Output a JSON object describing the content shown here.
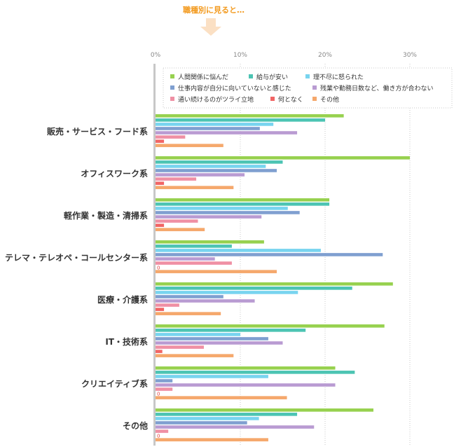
{
  "banner": "職種別に見ると…",
  "chart_data": {
    "type": "bar",
    "orientation": "horizontal",
    "xlim": [
      0,
      35
    ],
    "xticks": [
      0,
      10,
      20,
      30
    ],
    "tick_suffix": "%",
    "grid": true,
    "legend_position": "top-right",
    "categories": [
      "販売・サービス・フード系",
      "オフィスワーク系",
      "軽作業・製造・清掃系",
      "テレマ・テレオペ・コールセンター系",
      "医療・介護系",
      "IT・技術系",
      "クリエイティブ系",
      "その他"
    ],
    "series": [
      {
        "name": "人間関係に悩んだ",
        "color": "#97d14f",
        "values": [
          22.2,
          30.0,
          20.5,
          12.8,
          28.0,
          27.0,
          21.2,
          25.7
        ]
      },
      {
        "name": "給与が安い",
        "color": "#4cc4b3",
        "values": [
          20.0,
          15.0,
          20.5,
          9.0,
          23.2,
          17.7,
          23.5,
          16.7
        ]
      },
      {
        "name": "理不尽に怒られた",
        "color": "#78d4ef",
        "values": [
          13.9,
          13.0,
          15.6,
          19.5,
          16.8,
          10.0,
          13.3,
          12.2
        ]
      },
      {
        "name": "仕事内容が自分に向いていないと感じた",
        "color": "#7f9fd0",
        "values": [
          12.3,
          14.3,
          17.0,
          26.8,
          8.0,
          13.3,
          2.0,
          10.8
        ]
      },
      {
        "name": "残業や勤務日数など、働き方が合わない",
        "color": "#b99bd2",
        "values": [
          16.7,
          10.5,
          12.5,
          7.0,
          11.7,
          15.0,
          21.2,
          18.7
        ]
      },
      {
        "name": "通い続けるのがツライ立地",
        "color": "#ef90a4",
        "values": [
          3.5,
          4.8,
          5.0,
          9.0,
          2.8,
          5.7,
          2.0,
          1.5
        ]
      },
      {
        "name": "何となく",
        "color": "#f16565",
        "values": [
          1.0,
          1.0,
          1.0,
          0,
          1.0,
          0.8,
          0,
          0
        ]
      },
      {
        "name": "その他",
        "color": "#f5a86c",
        "values": [
          8.0,
          9.2,
          5.8,
          14.3,
          7.7,
          9.2,
          15.5,
          13.3
        ]
      }
    ]
  }
}
